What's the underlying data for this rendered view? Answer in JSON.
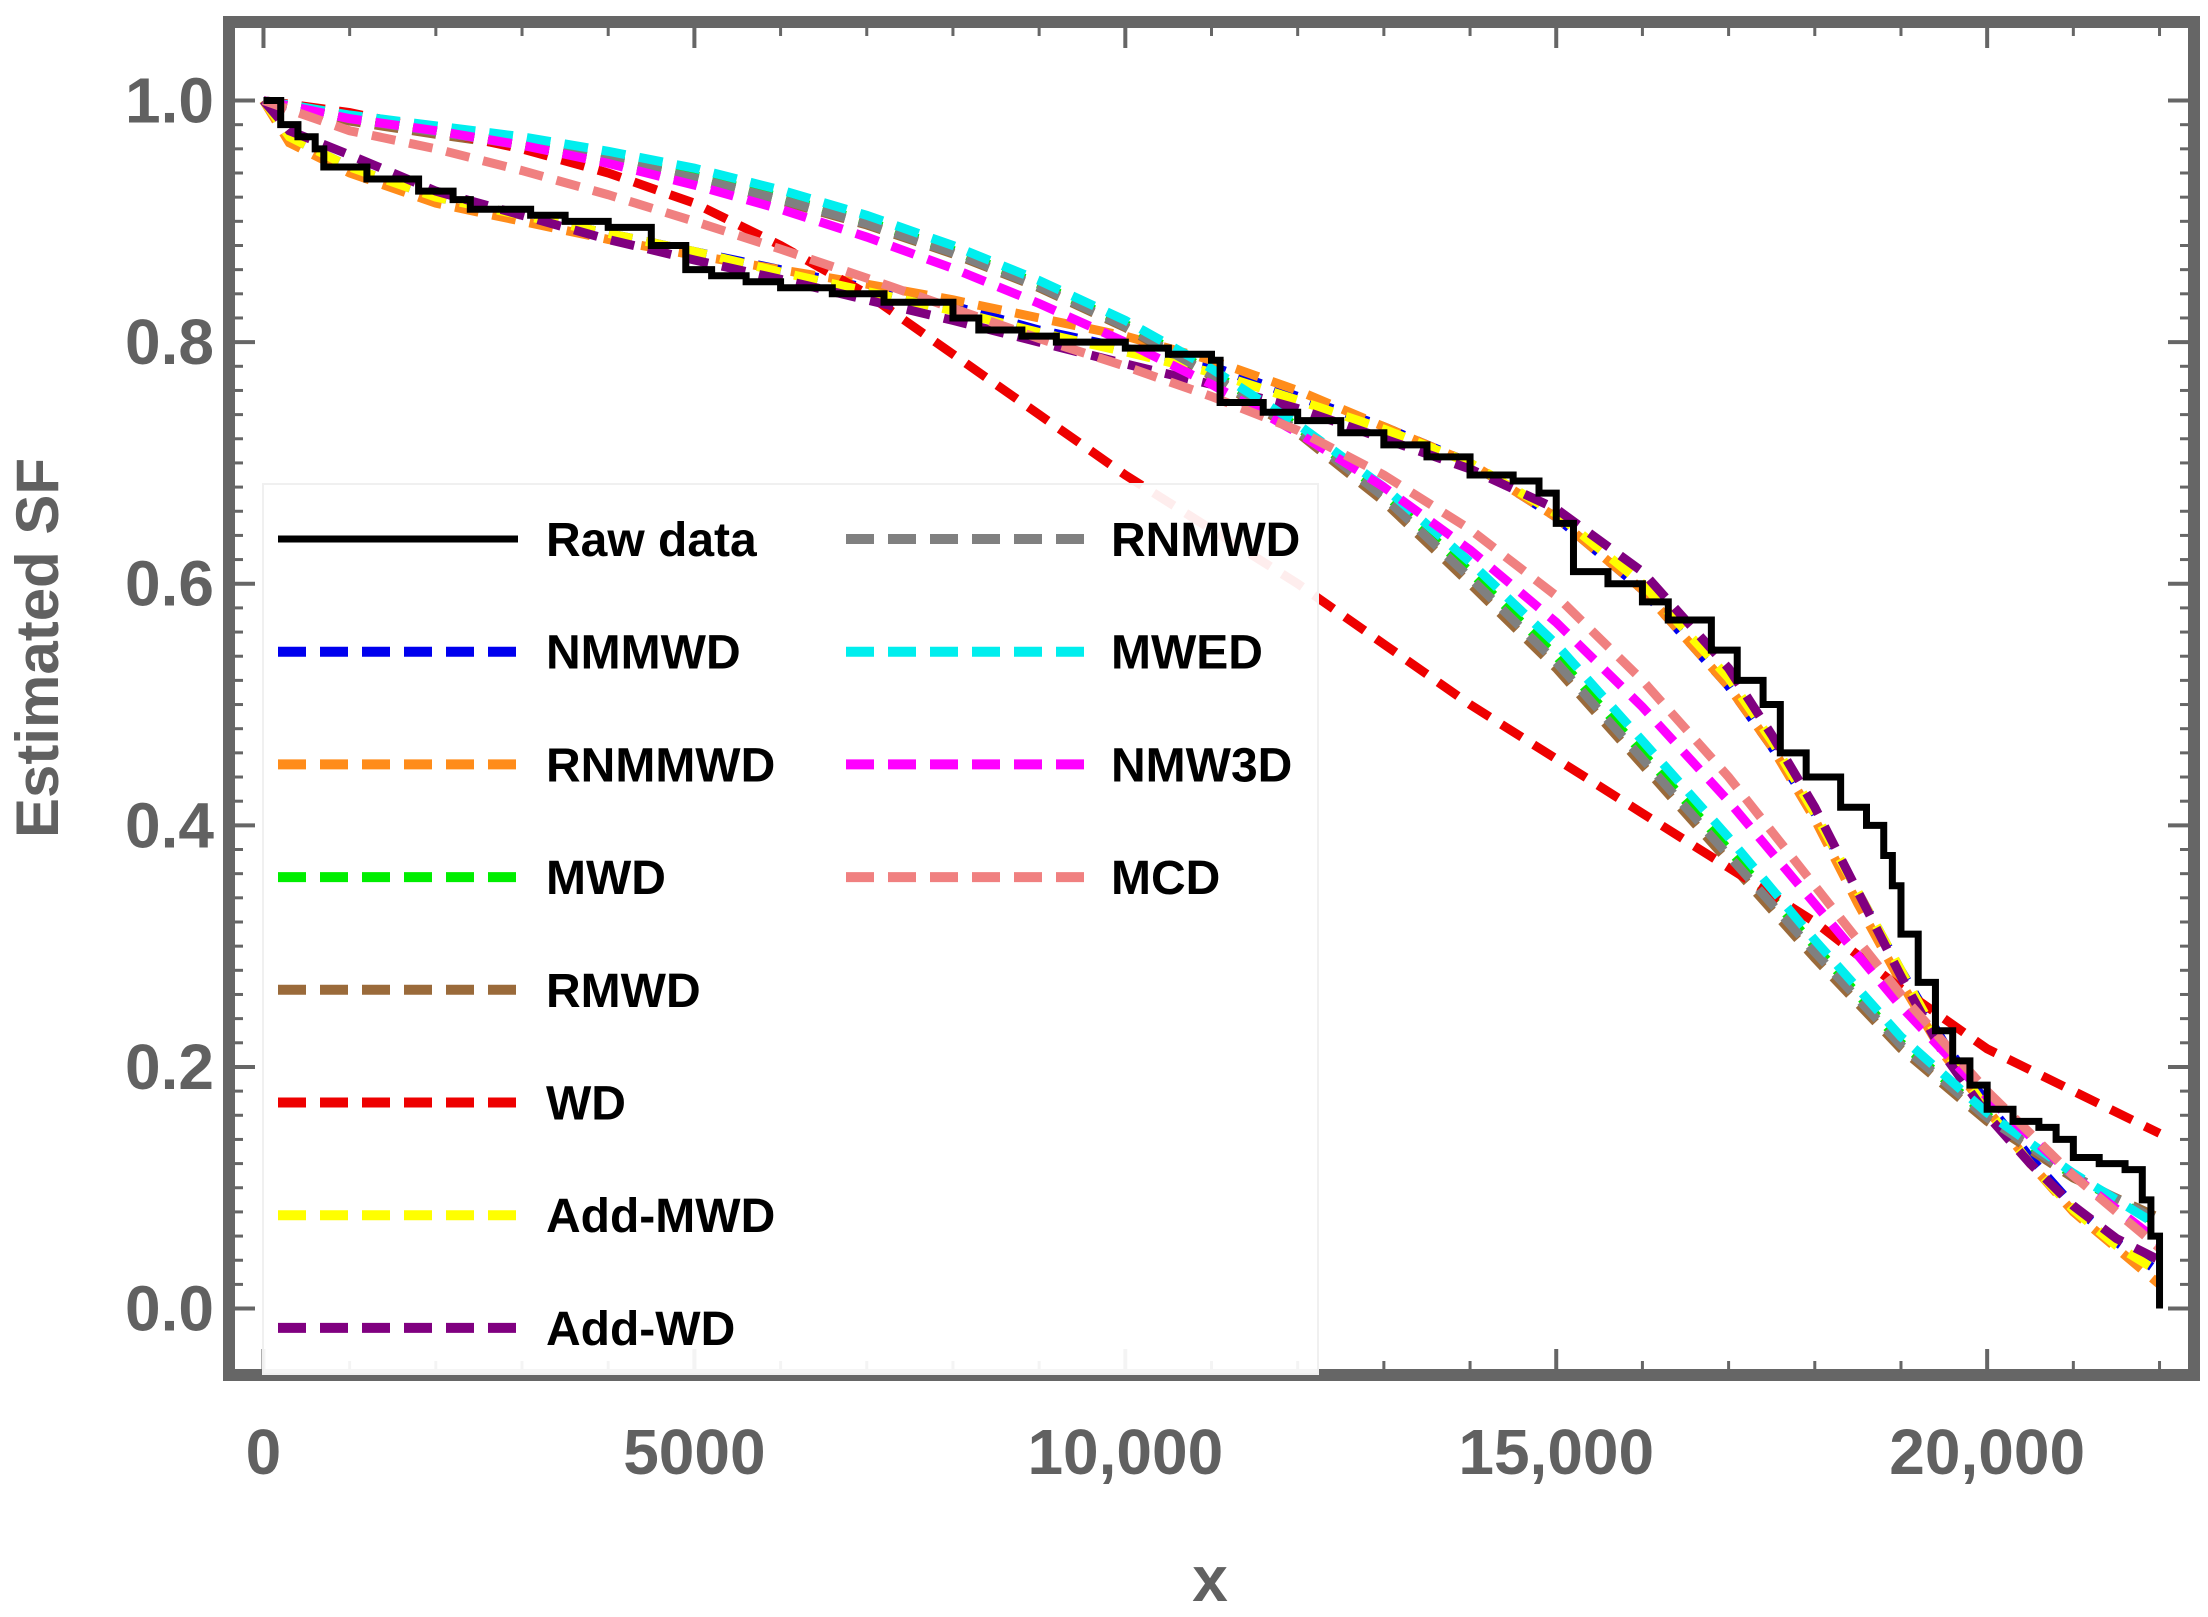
{
  "chart_data": {
    "type": "line",
    "title": "",
    "xlabel": "x",
    "ylabel": "Estimated SF",
    "xlim": [
      -400,
      22400
    ],
    "ylim": [
      -0.055,
      1.065
    ],
    "x_ticks": [
      0,
      5000,
      10000,
      15000,
      20000
    ],
    "x_tick_labels": [
      "0",
      "5000",
      "10,000",
      "15,000",
      "20,000"
    ],
    "y_ticks": [
      0.0,
      0.2,
      0.4,
      0.6,
      0.8,
      1.0
    ],
    "y_tick_labels": [
      "0.0",
      "0.2",
      "0.4",
      "0.6",
      "0.8",
      "1.0"
    ],
    "grid": false,
    "legend_position": "left, middle-bottom, two columns",
    "series": [
      {
        "name": "Raw data",
        "color": "#000000",
        "style": "step",
        "x": [
          0,
          200,
          400,
          600,
          700,
          1200,
          1800,
          2200,
          2400,
          3100,
          3500,
          4000,
          4500,
          4900,
          5200,
          5600,
          6000,
          6600,
          7200,
          8000,
          8300,
          8800,
          9200,
          10000,
          10500,
          11000,
          11100,
          11600,
          12000,
          12500,
          13000,
          13500,
          14000,
          14500,
          14800,
          15000,
          15200,
          15600,
          16000,
          16300,
          16800,
          17100,
          17400,
          17600,
          17900,
          18300,
          18600,
          18800,
          18900,
          19000,
          19200,
          19400,
          19600,
          19800,
          20000,
          20300,
          20600,
          20800,
          21000,
          21300,
          21600,
          21800,
          21900,
          22000
        ],
        "values": [
          1.0,
          0.98,
          0.97,
          0.96,
          0.945,
          0.935,
          0.925,
          0.918,
          0.91,
          0.905,
          0.9,
          0.895,
          0.88,
          0.86,
          0.855,
          0.85,
          0.845,
          0.84,
          0.833,
          0.82,
          0.81,
          0.805,
          0.8,
          0.795,
          0.79,
          0.785,
          0.75,
          0.742,
          0.735,
          0.725,
          0.715,
          0.705,
          0.69,
          0.685,
          0.675,
          0.65,
          0.61,
          0.6,
          0.585,
          0.57,
          0.545,
          0.52,
          0.5,
          0.46,
          0.44,
          0.415,
          0.4,
          0.375,
          0.35,
          0.31,
          0.27,
          0.23,
          0.205,
          0.185,
          0.165,
          0.155,
          0.15,
          0.14,
          0.125,
          0.12,
          0.115,
          0.09,
          0.06,
          0.0
        ]
      },
      {
        "name": "NMMWD",
        "color": "#0000ee",
        "style": "dashed",
        "x": [
          0,
          300,
          1000,
          2000,
          3000,
          4000,
          5000,
          6000,
          7000,
          8000,
          9000,
          10000,
          11000,
          12000,
          13000,
          14000,
          15000,
          16000,
          17000,
          17500,
          18000,
          18500,
          19000,
          19500,
          20000,
          20500,
          21000,
          21500,
          22000
        ],
        "values": [
          1.0,
          0.97,
          0.945,
          0.92,
          0.905,
          0.89,
          0.875,
          0.86,
          0.845,
          0.83,
          0.81,
          0.795,
          0.78,
          0.755,
          0.73,
          0.7,
          0.655,
          0.595,
          0.515,
          0.465,
          0.41,
          0.345,
          0.28,
          0.22,
          0.17,
          0.125,
          0.085,
          0.055,
          0.03
        ]
      },
      {
        "name": "RNMMWD",
        "color": "#ff8c1a",
        "style": "dashed",
        "x": [
          0,
          300,
          1000,
          2000,
          3000,
          4000,
          5000,
          6000,
          7000,
          8000,
          9000,
          10000,
          11000,
          12000,
          13000,
          14000,
          15000,
          16000,
          17000,
          17500,
          18000,
          18500,
          19000,
          19500,
          20000,
          20500,
          21000,
          21500,
          22000
        ],
        "values": [
          1.0,
          0.965,
          0.94,
          0.915,
          0.9,
          0.885,
          0.872,
          0.86,
          0.848,
          0.835,
          0.82,
          0.805,
          0.785,
          0.76,
          0.73,
          0.7,
          0.655,
          0.595,
          0.515,
          0.465,
          0.405,
          0.335,
          0.27,
          0.21,
          0.165,
          0.12,
          0.08,
          0.05,
          0.02
        ]
      },
      {
        "name": "MWD",
        "color": "#00ee00",
        "style": "dashed",
        "x": [
          0,
          1000,
          2000,
          3000,
          4000,
          5000,
          6000,
          7000,
          8000,
          9000,
          10000,
          11000,
          12000,
          13000,
          14000,
          15000,
          16000,
          17000,
          18000,
          19000,
          20000,
          21000,
          22000
        ],
        "values": [
          1.0,
          0.985,
          0.975,
          0.965,
          0.952,
          0.938,
          0.92,
          0.9,
          0.876,
          0.848,
          0.815,
          0.775,
          0.73,
          0.675,
          0.61,
          0.54,
          0.46,
          0.38,
          0.3,
          0.22,
          0.16,
          0.11,
          0.07
        ]
      },
      {
        "name": "RMWD",
        "color": "#9a6a3a",
        "style": "dashed",
        "x": [
          0,
          1000,
          2000,
          3000,
          4000,
          5000,
          6000,
          7000,
          8000,
          9000,
          10000,
          11000,
          12000,
          13000,
          14000,
          15000,
          16000,
          17000,
          18000,
          19000,
          20000,
          21000,
          22000
        ],
        "values": [
          1.0,
          0.983,
          0.972,
          0.962,
          0.95,
          0.935,
          0.917,
          0.897,
          0.873,
          0.845,
          0.812,
          0.772,
          0.725,
          0.668,
          0.6,
          0.53,
          0.45,
          0.37,
          0.29,
          0.215,
          0.155,
          0.108,
          0.075
        ]
      },
      {
        "name": "WD",
        "color": "#ee0000",
        "style": "dashed",
        "x": [
          0,
          1000,
          2000,
          3000,
          4000,
          5000,
          6000,
          7000,
          8000,
          9000,
          10000,
          11000,
          12000,
          13000,
          14000,
          15000,
          16000,
          17000,
          18000,
          19000,
          20000,
          21000,
          22000
        ],
        "values": [
          1.0,
          0.99,
          0.975,
          0.96,
          0.94,
          0.915,
          0.88,
          0.84,
          0.79,
          0.74,
          0.69,
          0.645,
          0.6,
          0.55,
          0.5,
          0.455,
          0.41,
          0.365,
          0.32,
          0.265,
          0.215,
          0.18,
          0.145
        ]
      },
      {
        "name": "Add-MWD",
        "color": "#ffff00",
        "style": "dashed",
        "x": [
          0,
          300,
          1000,
          2000,
          3000,
          4000,
          5000,
          6000,
          7000,
          8000,
          9000,
          10000,
          11000,
          12000,
          13000,
          14000,
          15000,
          16000,
          17000,
          17500,
          18000,
          18500,
          19000,
          19500,
          20000,
          20500,
          21000,
          21500,
          22000
        ],
        "values": [
          1.0,
          0.97,
          0.945,
          0.92,
          0.905,
          0.89,
          0.875,
          0.858,
          0.842,
          0.826,
          0.808,
          0.792,
          0.775,
          0.752,
          0.728,
          0.7,
          0.658,
          0.6,
          0.522,
          0.47,
          0.41,
          0.345,
          0.28,
          0.215,
          0.165,
          0.12,
          0.082,
          0.052,
          0.03
        ]
      },
      {
        "name": "Add-WD",
        "color": "#800080",
        "style": "dashed",
        "x": [
          0,
          300,
          1000,
          2000,
          3000,
          4000,
          5000,
          6000,
          7000,
          8000,
          9000,
          10000,
          11000,
          12000,
          13000,
          14000,
          15000,
          16000,
          17000,
          17500,
          18000,
          18500,
          19000,
          19500,
          20000,
          20500,
          21000,
          21500,
          22000
        ],
        "values": [
          1.0,
          0.975,
          0.955,
          0.925,
          0.905,
          0.885,
          0.868,
          0.852,
          0.835,
          0.818,
          0.8,
          0.782,
          0.765,
          0.745,
          0.72,
          0.695,
          0.662,
          0.61,
          0.53,
          0.475,
          0.415,
          0.345,
          0.275,
          0.21,
          0.16,
          0.12,
          0.085,
          0.058,
          0.04
        ]
      },
      {
        "name": "RNMWD",
        "color": "#808080",
        "style": "dashed",
        "x": [
          0,
          1000,
          2000,
          3000,
          4000,
          5000,
          6000,
          7000,
          8000,
          9000,
          10000,
          11000,
          12000,
          13000,
          14000,
          15000,
          16000,
          17000,
          18000,
          19000,
          20000,
          21000,
          22000
        ],
        "values": [
          1.0,
          0.985,
          0.974,
          0.963,
          0.951,
          0.936,
          0.918,
          0.898,
          0.874,
          0.846,
          0.813,
          0.773,
          0.727,
          0.672,
          0.605,
          0.535,
          0.455,
          0.375,
          0.295,
          0.218,
          0.158,
          0.11,
          0.072
        ]
      },
      {
        "name": "MWED",
        "color": "#00eeee",
        "style": "dashed",
        "x": [
          0,
          1000,
          2000,
          3000,
          4000,
          5000,
          6000,
          7000,
          8000,
          9000,
          10000,
          11000,
          12000,
          13000,
          14000,
          15000,
          16000,
          17000,
          18000,
          19000,
          20000,
          21000,
          22000
        ],
        "values": [
          1.0,
          0.988,
          0.979,
          0.97,
          0.958,
          0.944,
          0.926,
          0.905,
          0.88,
          0.851,
          0.818,
          0.778,
          0.732,
          0.68,
          0.618,
          0.55,
          0.47,
          0.39,
          0.305,
          0.225,
          0.162,
          0.112,
          0.068
        ]
      },
      {
        "name": "NMW3D",
        "color": "#ff00ff",
        "style": "dashed",
        "x": [
          0,
          1000,
          2000,
          3000,
          4000,
          5000,
          6000,
          7000,
          8000,
          9000,
          10000,
          11000,
          12000,
          13000,
          14000,
          15000,
          16000,
          17000,
          18000,
          19000,
          20000,
          21000,
          22000
        ],
        "values": [
          1.0,
          0.985,
          0.975,
          0.963,
          0.948,
          0.93,
          0.91,
          0.887,
          0.861,
          0.832,
          0.8,
          0.765,
          0.725,
          0.68,
          0.628,
          0.568,
          0.498,
          0.42,
          0.335,
          0.25,
          0.175,
          0.11,
          0.055
        ]
      },
      {
        "name": "MCD",
        "color": "#f08080",
        "style": "dashed",
        "x": [
          0,
          1000,
          2000,
          3000,
          4000,
          5000,
          6000,
          7000,
          8000,
          9000,
          10000,
          11000,
          12000,
          13000,
          14000,
          15000,
          16000,
          17000,
          18000,
          19000,
          20000,
          21000,
          22000
        ],
        "values": [
          1.0,
          0.975,
          0.96,
          0.942,
          0.922,
          0.9,
          0.877,
          0.853,
          0.828,
          0.803,
          0.78,
          0.755,
          0.727,
          0.69,
          0.645,
          0.59,
          0.52,
          0.44,
          0.35,
          0.26,
          0.18,
          0.11,
          0.05
        ]
      }
    ]
  }
}
